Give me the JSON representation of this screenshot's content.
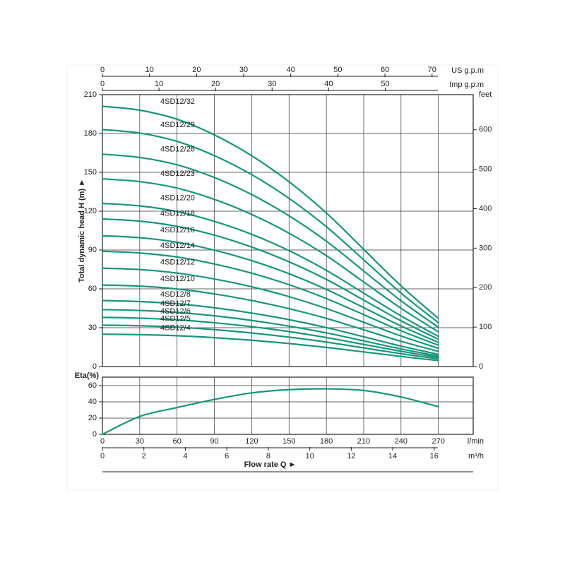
{
  "chart_data": [
    {
      "type": "line",
      "y_label": "Total dynamic head H (m) ►",
      "x": [
        0,
        30,
        60,
        90,
        120,
        150,
        180,
        210,
        240,
        270
      ],
      "xlim": [
        0,
        298
      ],
      "ylim": [
        0,
        210
      ],
      "yticks": [
        0,
        30,
        60,
        90,
        120,
        150,
        180,
        210
      ],
      "y2_label": "feet",
      "y2lim": [
        0,
        689
      ],
      "y2ticks": [
        0,
        100,
        200,
        300,
        400,
        500,
        600
      ],
      "grid": true,
      "top_axes": [
        {
          "label": "US g.p.m",
          "xlim": [
            0,
            78.73
          ],
          "xticks": [
            0,
            10,
            20,
            30,
            40,
            50,
            60,
            70
          ]
        },
        {
          "label": "Imp g.p.m",
          "xlim": [
            0,
            65.55
          ],
          "xticks": [
            0,
            10,
            20,
            30,
            40,
            50
          ]
        }
      ],
      "series": [
        {
          "name": "4SD12/32",
          "color": "#17967a",
          "values": [
            201,
            198.0,
            191.0,
            178.9,
            162.8,
            142.7,
            118.6,
            90.5,
            62.3,
            37.2
          ]
        },
        {
          "name": "4SD12/29",
          "color": "#17967a",
          "values": [
            183,
            180.3,
            173.9,
            162.9,
            148.2,
            129.9,
            108.0,
            82.4,
            56.7,
            33.9
          ]
        },
        {
          "name": "4SD12/26",
          "color": "#17967a",
          "values": [
            164,
            161.5,
            155.8,
            146.0,
            132.8,
            116.4,
            96.8,
            73.8,
            50.8,
            30.3
          ]
        },
        {
          "name": "4SD12/23",
          "color": "#17967a",
          "values": [
            145,
            142.8,
            137.8,
            129.1,
            117.5,
            103.0,
            85.6,
            65.3,
            45.0,
            26.8
          ]
        },
        {
          "name": "4SD12/20",
          "color": "#17967a",
          "values": [
            126,
            124.1,
            119.7,
            112.1,
            102.1,
            89.5,
            74.3,
            56.7,
            39.1,
            23.3
          ]
        },
        {
          "name": "4SD12/18",
          "color": "#17967a",
          "values": [
            114,
            112.3,
            108.3,
            101.5,
            92.3,
            80.9,
            67.3,
            51.3,
            35.3,
            21.1
          ]
        },
        {
          "name": "4SD12/16",
          "color": "#17967a",
          "values": [
            101,
            99.5,
            96.0,
            89.9,
            81.8,
            71.7,
            59.6,
            45.5,
            31.3,
            18.7
          ]
        },
        {
          "name": "4SD12/14",
          "color": "#17967a",
          "values": [
            89,
            87.7,
            84.6,
            79.2,
            72.1,
            63.2,
            52.5,
            40.1,
            27.6,
            16.5
          ]
        },
        {
          "name": "4SD12/12",
          "color": "#17967a",
          "values": [
            76,
            74.9,
            72.2,
            67.6,
            61.6,
            54.0,
            44.8,
            34.2,
            23.6,
            14.1
          ]
        },
        {
          "name": "4SD12/10",
          "color": "#17967a",
          "values": [
            63,
            62.1,
            59.9,
            56.1,
            51.0,
            44.7,
            37.2,
            28.4,
            19.5,
            11.7
          ]
        },
        {
          "name": "4SD12/8",
          "color": "#17967a",
          "values": [
            51,
            50.2,
            48.5,
            45.4,
            41.3,
            36.2,
            30.1,
            23.0,
            15.8,
            9.4
          ]
        },
        {
          "name": "4SD12/7",
          "color": "#17967a",
          "values": [
            44,
            43.3,
            41.8,
            39.2,
            35.6,
            31.2,
            26.0,
            19.8,
            13.6,
            8.1
          ]
        },
        {
          "name": "4SD12/6",
          "color": "#17967a",
          "values": [
            38,
            37.4,
            36.1,
            33.8,
            30.8,
            27.0,
            22.4,
            17.1,
            11.8,
            7.0
          ]
        },
        {
          "name": "4SD12/5",
          "color": "#17967a",
          "values": [
            32,
            31.5,
            30.4,
            28.5,
            25.9,
            22.7,
            18.9,
            14.4,
            9.9,
            5.9
          ]
        },
        {
          "name": "4SD12/4",
          "color": "#17967a",
          "values": [
            25,
            24.6,
            23.8,
            22.3,
            20.3,
            17.8,
            14.8,
            11.3,
            7.8,
            4.6
          ]
        }
      ]
    },
    {
      "type": "line",
      "y_label": "Eta(%)",
      "x": [
        0,
        30,
        60,
        90,
        120,
        150,
        180,
        210,
        240,
        270
      ],
      "xlim": [
        0,
        298
      ],
      "xticks": [
        0,
        30,
        60,
        90,
        120,
        150,
        180,
        210,
        240,
        270
      ],
      "x_label": "l/min",
      "ylim": [
        0,
        70.4
      ],
      "yticks": [
        0,
        20,
        40,
        60
      ],
      "grid": true,
      "bottom_axes": [
        {
          "label": "m³/h",
          "xlim": [
            0,
            17.88
          ],
          "xticks": [
            0,
            2,
            4,
            6,
            8,
            10,
            12,
            14,
            16
          ]
        }
      ],
      "axis_title": "Flow rate Q ►",
      "series": [
        {
          "color": "#17967a",
          "values": [
            0,
            22,
            33,
            43,
            51,
            55,
            56,
            54,
            46,
            34
          ]
        }
      ]
    }
  ]
}
